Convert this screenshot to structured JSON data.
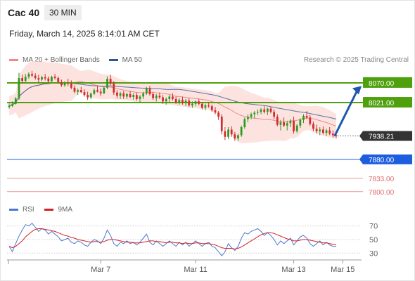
{
  "header": {
    "symbol": "Cac 40",
    "timeframe": "30 MIN",
    "datetime": "Friday, March 14, 2025 8:14:01 AM CET"
  },
  "legend_price": [
    {
      "label": "MA 20 + Bollinger Bands",
      "color": "#f08a85"
    },
    {
      "label": "MA 50",
      "color": "#2e5597"
    }
  ],
  "credit": "Research © 2025 Trading Central",
  "legend_rsi": [
    {
      "label": "RSI",
      "color": "#4a78d0"
    },
    {
      "label": "9MA",
      "color": "#d61f1f"
    }
  ],
  "colors": {
    "up": "#2e9a1e",
    "down": "#d22c2c",
    "resistance": "#4ea00d",
    "support": "#1d5ee0",
    "pivot_bg": "#333333",
    "minor_support": "#e06b6b",
    "band_fill": "#fbd9d6",
    "arrow": "#1f56b0"
  },
  "chart_data": [
    {
      "type": "candlestick",
      "ylim": [
        7770,
        8110
      ],
      "x_ticks": [
        "Mar 7",
        "Mar 11",
        "Mar 13",
        "Mar 15"
      ],
      "x_tick_index": [
        28,
        57,
        87,
        102
      ],
      "candles": [
        [
          8010,
          8019,
          8006,
          8013
        ],
        [
          8013,
          8024,
          8010,
          8018
        ],
        [
          8018,
          8035,
          8016,
          8031
        ],
        [
          8031,
          8095,
          8028,
          8082
        ],
        [
          8082,
          8090,
          8068,
          8075
        ],
        [
          8075,
          8092,
          8072,
          8085
        ],
        [
          8085,
          8096,
          8080,
          8092
        ],
        [
          8092,
          8100,
          8084,
          8088
        ],
        [
          8088,
          8094,
          8078,
          8082
        ],
        [
          8082,
          8090,
          8070,
          8078
        ],
        [
          8078,
          8088,
          8074,
          8084
        ],
        [
          8084,
          8092,
          8076,
          8081
        ],
        [
          8081,
          8086,
          8070,
          8074
        ],
        [
          8074,
          8088,
          8072,
          8085
        ],
        [
          8085,
          8092,
          8078,
          8082
        ],
        [
          8082,
          8086,
          8068,
          8072
        ],
        [
          8072,
          8078,
          8060,
          8064
        ],
        [
          8064,
          8074,
          8060,
          8070
        ],
        [
          8070,
          8080,
          8062,
          8068
        ],
        [
          8068,
          8076,
          8054,
          8058
        ],
        [
          8058,
          8064,
          8044,
          8048
        ],
        [
          8048,
          8056,
          8040,
          8052
        ],
        [
          8052,
          8060,
          8044,
          8047
        ],
        [
          8047,
          8054,
          8036,
          8040
        ],
        [
          8040,
          8048,
          8028,
          8034
        ],
        [
          8034,
          8046,
          8030,
          8043
        ],
        [
          8043,
          8056,
          8040,
          8052
        ],
        [
          8052,
          8062,
          8046,
          8048
        ],
        [
          8048,
          8056,
          8038,
          8044
        ],
        [
          8044,
          8060,
          8042,
          8058
        ],
        [
          8058,
          8086,
          8054,
          8080
        ],
        [
          8080,
          8090,
          8064,
          8068
        ],
        [
          8068,
          8074,
          8040,
          8046
        ],
        [
          8046,
          8052,
          8032,
          8038
        ],
        [
          8038,
          8048,
          8030,
          8044
        ],
        [
          8044,
          8050,
          8030,
          8036
        ],
        [
          8036,
          8046,
          8030,
          8042
        ],
        [
          8042,
          8050,
          8032,
          8035
        ],
        [
          8035,
          8044,
          8028,
          8040
        ],
        [
          8040,
          8046,
          8026,
          8030
        ],
        [
          8030,
          8040,
          8022,
          8036
        ],
        [
          8036,
          8048,
          8030,
          8044
        ],
        [
          8044,
          8060,
          8040,
          8056
        ],
        [
          8056,
          8062,
          8038,
          8042
        ],
        [
          8042,
          8048,
          8028,
          8032
        ],
        [
          8032,
          8042,
          8024,
          8038
        ],
        [
          8038,
          8046,
          8030,
          8034
        ],
        [
          8034,
          8040,
          8018,
          8024
        ],
        [
          8024,
          8034,
          8016,
          8030
        ],
        [
          8030,
          8040,
          8022,
          8036
        ],
        [
          8036,
          8044,
          8026,
          8030
        ],
        [
          8030,
          8036,
          8018,
          8022
        ],
        [
          8022,
          8032,
          8016,
          8028
        ],
        [
          8028,
          8036,
          8016,
          8020
        ],
        [
          8020,
          8030,
          8012,
          8026
        ],
        [
          8026,
          8032,
          8010,
          8014
        ],
        [
          8014,
          8024,
          8008,
          8018
        ],
        [
          8018,
          8026,
          8012,
          8024
        ],
        [
          8024,
          8030,
          8014,
          8018
        ],
        [
          8018,
          8022,
          8004,
          8008
        ],
        [
          8008,
          8018,
          8002,
          8014
        ],
        [
          8014,
          8022,
          8008,
          8012
        ],
        [
          8012,
          8016,
          7998,
          8002
        ],
        [
          8002,
          8010,
          7992,
          7996
        ],
        [
          7996,
          8000,
          7978,
          7986
        ],
        [
          7986,
          7992,
          7942,
          7950
        ],
        [
          7950,
          7960,
          7928,
          7936
        ],
        [
          7936,
          7960,
          7930,
          7954
        ],
        [
          7954,
          7962,
          7936,
          7942
        ],
        [
          7942,
          7948,
          7926,
          7932
        ],
        [
          7932,
          7944,
          7926,
          7940
        ],
        [
          7940,
          7964,
          7936,
          7960
        ],
        [
          7960,
          7984,
          7956,
          7980
        ],
        [
          7980,
          7992,
          7972,
          7986
        ],
        [
          7986,
          7996,
          7980,
          7992
        ],
        [
          7992,
          8000,
          7982,
          7996
        ],
        [
          7996,
          8004,
          7990,
          7998
        ],
        [
          7998,
          8008,
          7992,
          8004
        ],
        [
          8004,
          8012,
          7994,
          7998
        ],
        [
          7998,
          8008,
          7990,
          8006
        ],
        [
          8006,
          8010,
          7994,
          7998
        ],
        [
          7998,
          8004,
          7980,
          7986
        ],
        [
          7986,
          7992,
          7962,
          7966
        ],
        [
          7966,
          7978,
          7952,
          7972
        ],
        [
          7972,
          7984,
          7960,
          7964
        ],
        [
          7964,
          7976,
          7952,
          7970
        ],
        [
          7970,
          7980,
          7960,
          7976
        ],
        [
          7976,
          7986,
          7944,
          7950
        ],
        [
          7950,
          7968,
          7946,
          7964
        ],
        [
          7964,
          7982,
          7958,
          7978
        ],
        [
          7978,
          7992,
          7970,
          7988
        ],
        [
          7988,
          8000,
          7980,
          7984
        ],
        [
          7984,
          7990,
          7964,
          7968
        ],
        [
          7968,
          7974,
          7950,
          7956
        ],
        [
          7956,
          7966,
          7944,
          7950
        ],
        [
          7950,
          7960,
          7940,
          7954
        ],
        [
          7954,
          7962,
          7942,
          7946
        ],
        [
          7946,
          7956,
          7938,
          7952
        ],
        [
          7952,
          7960,
          7940,
          7944
        ],
        [
          7944,
          7952,
          7934,
          7940
        ],
        [
          7940,
          7946,
          7932,
          7938
        ]
      ],
      "levels": [
        {
          "label": "8070.00",
          "value": 8070,
          "role": "resistance"
        },
        {
          "label": "8021.00",
          "value": 8021,
          "role": "resistance"
        },
        {
          "label": "7938.21",
          "value": 7938.21,
          "role": "pivot"
        },
        {
          "label": "7880.00",
          "value": 7880,
          "role": "support"
        },
        {
          "label": "7833.00",
          "value": 7833,
          "role": "minor_support"
        },
        {
          "label": "7800.00",
          "value": 7800,
          "role": "minor_support"
        }
      ],
      "projection": {
        "from_index": 99,
        "from_value": 7940,
        "to_value": 8062
      }
    },
    {
      "type": "line",
      "name": "RSI panel",
      "ylim": [
        22,
        80
      ],
      "y_ticks": [
        70,
        50,
        30
      ],
      "series": [
        {
          "name": "RSI",
          "values": [
            40,
            32,
            44,
            55,
            64,
            72,
            70,
            74,
            68,
            62,
            66,
            64,
            58,
            62,
            58,
            54,
            48,
            50,
            52,
            46,
            44,
            48,
            46,
            42,
            40,
            46,
            50,
            48,
            44,
            52,
            64,
            56,
            44,
            40,
            46,
            44,
            48,
            44,
            46,
            42,
            46,
            52,
            58,
            46,
            42,
            48,
            44,
            40,
            44,
            48,
            44,
            40,
            46,
            42,
            46,
            40,
            44,
            48,
            44,
            40,
            44,
            46,
            40,
            38,
            32,
            26,
            32,
            44,
            38,
            34,
            40,
            52,
            60,
            58,
            62,
            64,
            66,
            62,
            56,
            60,
            56,
            50,
            42,
            48,
            44,
            48,
            52,
            42,
            48,
            54,
            56,
            52,
            44,
            40,
            44,
            48,
            42,
            46,
            42,
            40,
            40
          ]
        },
        {
          "name": "9MA",
          "values": [
            40,
            38,
            40,
            44,
            48,
            54,
            58,
            62,
            65,
            66,
            66,
            65,
            64,
            63,
            62,
            60,
            58,
            56,
            55,
            53,
            52,
            50,
            49,
            48,
            47,
            46,
            47,
            47,
            46,
            47,
            49,
            50,
            50,
            49,
            48,
            47,
            46,
            46,
            45,
            45,
            45,
            46,
            47,
            48,
            48,
            47,
            47,
            46,
            45,
            46,
            46,
            45,
            45,
            44,
            45,
            44,
            44,
            45,
            45,
            44,
            44,
            44,
            43,
            42,
            40,
            38,
            37,
            37,
            37,
            36,
            37,
            39,
            42,
            45,
            48,
            51,
            54,
            57,
            59,
            60,
            60,
            59,
            57,
            55,
            53,
            51,
            50,
            48,
            48,
            49,
            50,
            50,
            49,
            48,
            47,
            46,
            45,
            45,
            44,
            43,
            42
          ]
        }
      ]
    }
  ]
}
